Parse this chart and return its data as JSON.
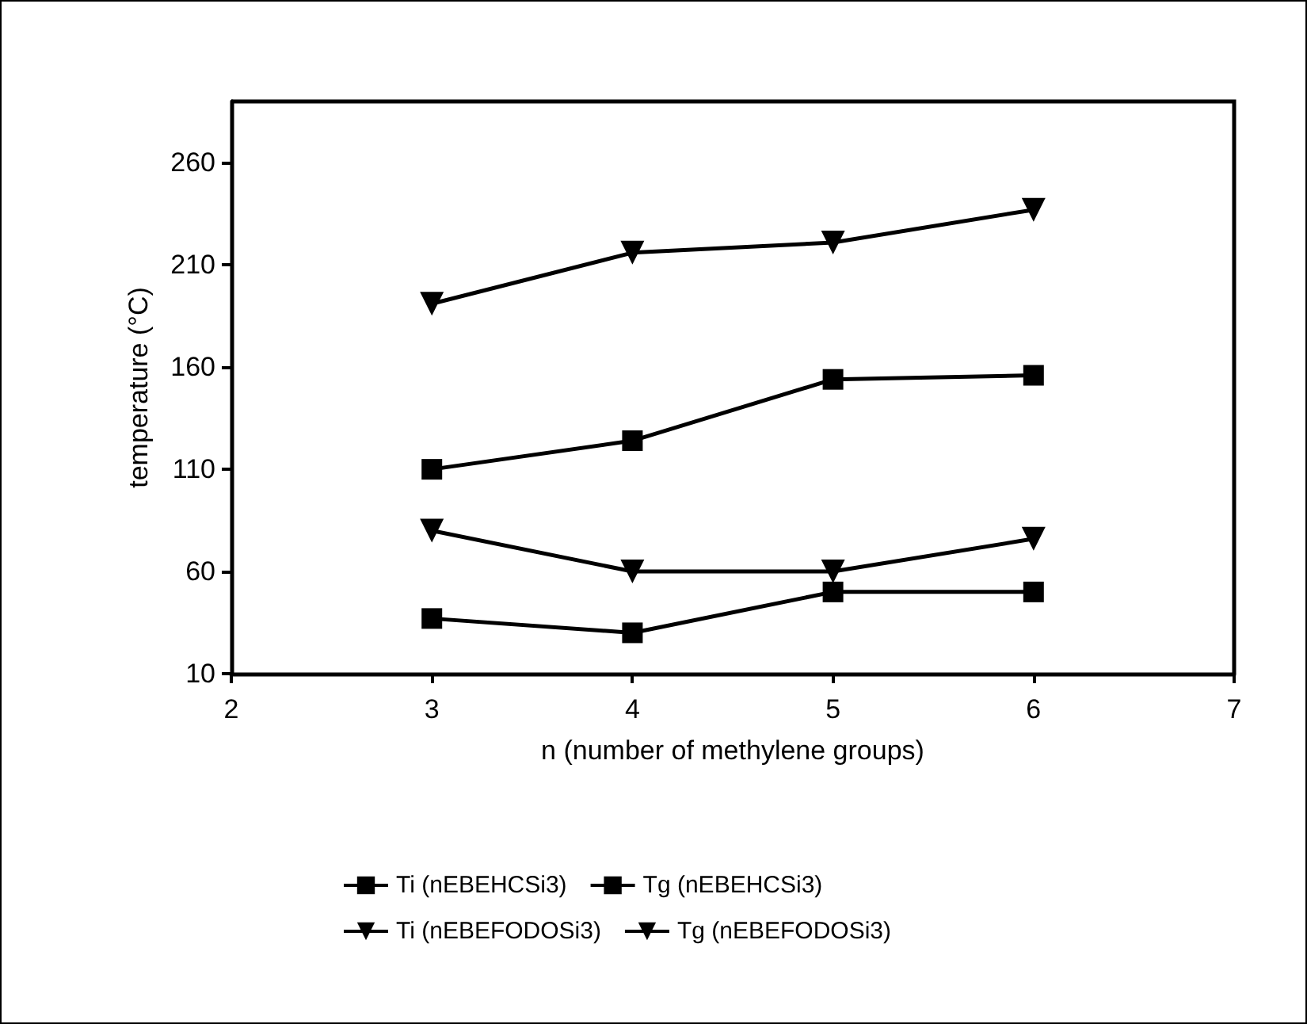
{
  "chart_data": {
    "type": "line",
    "xlabel": "n (number of methylene groups)",
    "ylabel": "temperature (°C)",
    "x": [
      3,
      4,
      5,
      6
    ],
    "series": [
      {
        "name": "Ti (nEBEHCSi3)",
        "color": "#000000",
        "marker": "square",
        "values": [
          110,
          124,
          154,
          156
        ]
      },
      {
        "name": "Tg (nEBEHCSi3)",
        "color": "#000000",
        "marker": "square",
        "values": [
          37,
          30,
          50,
          50
        ]
      },
      {
        "name": "Ti (nEBEFODOSi3)",
        "color": "#000000",
        "marker": "triangle",
        "values": [
          191,
          216,
          221,
          237
        ]
      },
      {
        "name": "Tg (nEBEFODOSi3)",
        "color": "#000000",
        "marker": "triangle",
        "values": [
          80,
          60,
          60,
          76
        ]
      }
    ],
    "xlim": [
      2,
      7
    ],
    "xticks": [
      2,
      3,
      4,
      5,
      6,
      7
    ],
    "ylim": [
      10,
      290
    ],
    "yticks": [
      10,
      60,
      110,
      160,
      210,
      260
    ],
    "grid": false,
    "legend": "bottom",
    "line_style": "solid"
  }
}
